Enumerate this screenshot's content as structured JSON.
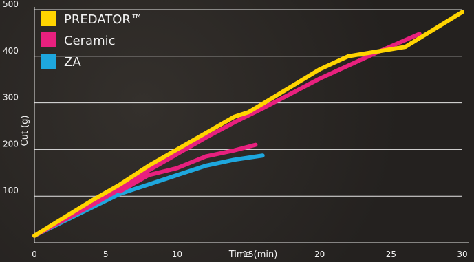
{
  "chart_data": {
    "type": "line",
    "title": "",
    "xlabel": "Time (min)",
    "ylabel": "Cut (g)",
    "xlim": [
      0,
      30
    ],
    "ylim": [
      0,
      500
    ],
    "x_ticks": [
      "0",
      "5",
      "10",
      "15",
      "20",
      "25",
      "30"
    ],
    "y_ticks": [
      "100",
      "200",
      "300",
      "400",
      "500"
    ],
    "grid": "horizontal",
    "legend_position": "top-left",
    "series": [
      {
        "name": "PREDATOR™",
        "color": "#ffd400",
        "x": [
          0,
          4,
          6,
          8,
          10,
          12,
          14,
          15,
          16,
          18,
          20,
          22,
          24,
          26,
          30
        ],
        "y": [
          15,
          90,
          125,
          165,
          200,
          235,
          270,
          280,
          298,
          335,
          372,
          400,
          410,
          420,
          495
        ]
      },
      {
        "name": "Ceramic",
        "color": "#e8207e",
        "x": [
          0,
          4,
          6,
          8,
          10,
          12,
          14,
          16,
          18,
          20,
          22,
          24,
          27
        ],
        "y": [
          15,
          80,
          115,
          155,
          190,
          225,
          258,
          288,
          320,
          352,
          380,
          408,
          448
        ]
      },
      {
        "name": "Ceramic",
        "color": "#e8207e",
        "x": [
          6,
          8,
          10,
          12,
          14,
          15.5
        ],
        "y": [
          110,
          145,
          160,
          185,
          198,
          210
        ]
      },
      {
        "name": "ZA",
        "color": "#1ea7de",
        "x": [
          0,
          3,
          6,
          8,
          10,
          12,
          14,
          16
        ],
        "y": [
          15,
          60,
          105,
          125,
          145,
          165,
          178,
          187
        ]
      }
    ]
  }
}
